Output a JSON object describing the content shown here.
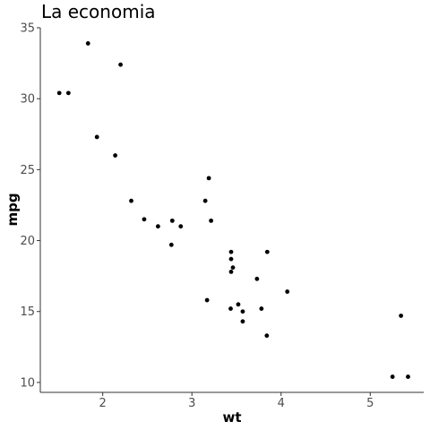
{
  "chart_data": {
    "type": "scatter",
    "title": "La economia",
    "xlabel": "wt",
    "ylabel": "mpg",
    "xlim": [
      1.3,
      5.6
    ],
    "ylim": [
      9.3,
      35.0
    ],
    "xticks": [
      2,
      3,
      4,
      5
    ],
    "yticks": [
      10,
      15,
      20,
      25,
      30,
      35
    ],
    "grid": false,
    "points": [
      {
        "x": 2.62,
        "y": 21.0
      },
      {
        "x": 2.875,
        "y": 21.0
      },
      {
        "x": 2.32,
        "y": 22.8
      },
      {
        "x": 3.215,
        "y": 21.4
      },
      {
        "x": 3.44,
        "y": 18.7
      },
      {
        "x": 3.46,
        "y": 18.1
      },
      {
        "x": 3.57,
        "y": 14.3
      },
      {
        "x": 3.19,
        "y": 24.4
      },
      {
        "x": 3.15,
        "y": 22.8
      },
      {
        "x": 3.44,
        "y": 19.2
      },
      {
        "x": 3.44,
        "y": 17.8
      },
      {
        "x": 4.07,
        "y": 16.4
      },
      {
        "x": 3.73,
        "y": 17.3
      },
      {
        "x": 3.78,
        "y": 15.2
      },
      {
        "x": 5.25,
        "y": 10.4
      },
      {
        "x": 5.424,
        "y": 10.4
      },
      {
        "x": 5.345,
        "y": 14.7
      },
      {
        "x": 2.2,
        "y": 32.4
      },
      {
        "x": 1.615,
        "y": 30.4
      },
      {
        "x": 1.835,
        "y": 33.9
      },
      {
        "x": 2.465,
        "y": 21.5
      },
      {
        "x": 3.52,
        "y": 15.5
      },
      {
        "x": 3.435,
        "y": 15.2
      },
      {
        "x": 3.84,
        "y": 13.3
      },
      {
        "x": 3.845,
        "y": 19.2
      },
      {
        "x": 1.935,
        "y": 27.3
      },
      {
        "x": 2.14,
        "y": 26.0
      },
      {
        "x": 1.513,
        "y": 30.4
      },
      {
        "x": 3.17,
        "y": 15.8
      },
      {
        "x": 2.77,
        "y": 19.7
      },
      {
        "x": 3.57,
        "y": 15.0
      },
      {
        "x": 2.78,
        "y": 21.4
      }
    ]
  }
}
